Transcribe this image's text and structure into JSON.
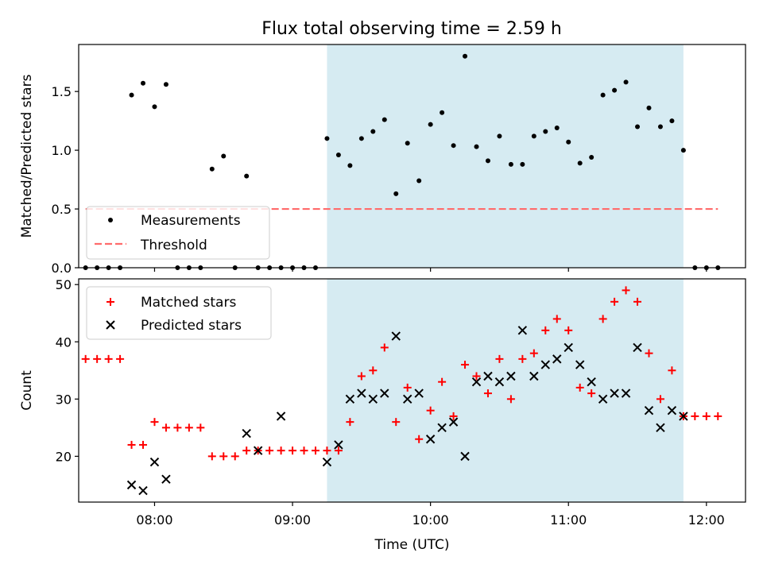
{
  "title": "Flux total observing time = 2.59 h",
  "colors": {
    "measurement": "#000000",
    "threshold": "#ff6b6b",
    "shade": "#add8e6",
    "matched": "#ff0000",
    "predicted": "#000000"
  },
  "chart_data": [
    {
      "type": "scatter",
      "name": "top",
      "ylabel": "Matched/Predicted stars",
      "xlabel": "",
      "xlim": [
        "07:27",
        "12:17"
      ],
      "ylim": [
        0,
        1.9
      ],
      "yticks": [
        "0.0",
        "0.5",
        "1.0",
        "1.5"
      ],
      "shaded_interval": [
        "09:15",
        "11:50"
      ],
      "legend": {
        "position": "lower-left",
        "entries": [
          "Measurements",
          "Threshold"
        ]
      },
      "threshold": {
        "label": "Threshold",
        "value": 0.5,
        "x": [
          "07:30",
          "12:05"
        ]
      },
      "series": [
        {
          "name": "Measurements",
          "marker": "dot",
          "x": [
            "07:30",
            "07:35",
            "07:40",
            "07:45",
            "07:50",
            "07:55",
            "08:00",
            "08:05",
            "08:10",
            "08:15",
            "08:20",
            "08:25",
            "08:30",
            "08:35",
            "08:40",
            "08:45",
            "08:50",
            "08:55",
            "09:00",
            "09:05",
            "09:10",
            "09:15",
            "09:20",
            "09:25",
            "09:30",
            "09:35",
            "09:40",
            "09:45",
            "09:50",
            "09:55",
            "10:00",
            "10:05",
            "10:10",
            "10:15",
            "10:20",
            "10:25",
            "10:30",
            "10:35",
            "10:40",
            "10:45",
            "10:50",
            "10:55",
            "11:00",
            "11:05",
            "11:10",
            "11:15",
            "11:20",
            "11:25",
            "11:30",
            "11:35",
            "11:40",
            "11:45",
            "11:50",
            "11:55",
            "12:00",
            "12:05"
          ],
          "y": [
            0,
            0,
            0,
            0,
            1.47,
            1.57,
            1.37,
            1.56,
            0,
            0,
            0,
            0.84,
            0.95,
            0,
            0.78,
            0,
            0,
            0,
            0,
            0,
            0,
            1.1,
            0.96,
            0.87,
            1.1,
            1.16,
            1.26,
            0.63,
            1.06,
            0.74,
            1.22,
            1.32,
            1.04,
            1.8,
            1.03,
            0.91,
            1.12,
            0.88,
            0.88,
            1.12,
            1.16,
            1.19,
            1.07,
            0.89,
            0.94,
            1.47,
            1.51,
            1.58,
            1.2,
            1.36,
            1.2,
            1.25,
            1.0,
            0,
            0,
            0
          ]
        }
      ]
    },
    {
      "type": "scatter",
      "name": "bottom",
      "ylabel": "Count",
      "xlabel": "Time (UTC)",
      "xlim": [
        "07:27",
        "12:17"
      ],
      "ylim": [
        12,
        51
      ],
      "yticks": [
        "20",
        "30",
        "40",
        "50"
      ],
      "xticks": [
        "08:00",
        "09:00",
        "10:00",
        "11:00",
        "12:00"
      ],
      "shaded_interval": [
        "09:15",
        "11:50"
      ],
      "legend": {
        "position": "upper-left",
        "entries": [
          "Matched stars",
          "Predicted stars"
        ]
      },
      "series": [
        {
          "name": "Matched stars",
          "marker": "plus",
          "x": [
            "07:30",
            "07:35",
            "07:40",
            "07:45",
            "07:50",
            "07:55",
            "08:00",
            "08:05",
            "08:10",
            "08:15",
            "08:20",
            "08:25",
            "08:30",
            "08:35",
            "08:40",
            "08:45",
            "08:50",
            "08:55",
            "09:00",
            "09:05",
            "09:10",
            "09:15",
            "09:20",
            "09:25",
            "09:30",
            "09:35",
            "09:40",
            "09:45",
            "09:50",
            "09:55",
            "10:00",
            "10:05",
            "10:10",
            "10:15",
            "10:20",
            "10:25",
            "10:30",
            "10:35",
            "10:40",
            "10:45",
            "10:50",
            "10:55",
            "11:00",
            "11:05",
            "11:10",
            "11:15",
            "11:20",
            "11:25",
            "11:30",
            "11:35",
            "11:40",
            "11:45",
            "11:50",
            "11:55",
            "12:00",
            "12:05"
          ],
          "y": [
            37,
            37,
            37,
            37,
            22,
            22,
            26,
            25,
            25,
            25,
            25,
            20,
            20,
            20,
            21,
            21,
            21,
            21,
            21,
            21,
            21,
            21,
            21,
            26,
            34,
            35,
            39,
            26,
            32,
            23,
            28,
            33,
            27,
            36,
            34,
            31,
            37,
            30,
            37,
            38,
            42,
            44,
            42,
            32,
            31,
            44,
            47,
            49,
            47,
            38,
            30,
            35,
            27,
            27,
            27,
            27
          ]
        },
        {
          "name": "Predicted stars",
          "marker": "cross",
          "x": [
            "07:50",
            "07:55",
            "08:00",
            "08:05",
            "08:40",
            "08:45",
            "08:55",
            "09:15",
            "09:20",
            "09:25",
            "09:30",
            "09:35",
            "09:40",
            "09:45",
            "09:50",
            "09:55",
            "10:00",
            "10:05",
            "10:10",
            "10:15",
            "10:20",
            "10:25",
            "10:30",
            "10:35",
            "10:40",
            "10:45",
            "10:50",
            "10:55",
            "11:00",
            "11:05",
            "11:10",
            "11:15",
            "11:20",
            "11:25",
            "11:30",
            "11:35",
            "11:40",
            "11:45",
            "11:50"
          ],
          "y": [
            15,
            14,
            19,
            16,
            24,
            21,
            27,
            19,
            22,
            30,
            31,
            30,
            31,
            41,
            30,
            31,
            23,
            25,
            26,
            20,
            33,
            34,
            33,
            34,
            42,
            34,
            36,
            37,
            39,
            36,
            33,
            30,
            31,
            31,
            39,
            28,
            25,
            28,
            27
          ]
        }
      ]
    }
  ]
}
